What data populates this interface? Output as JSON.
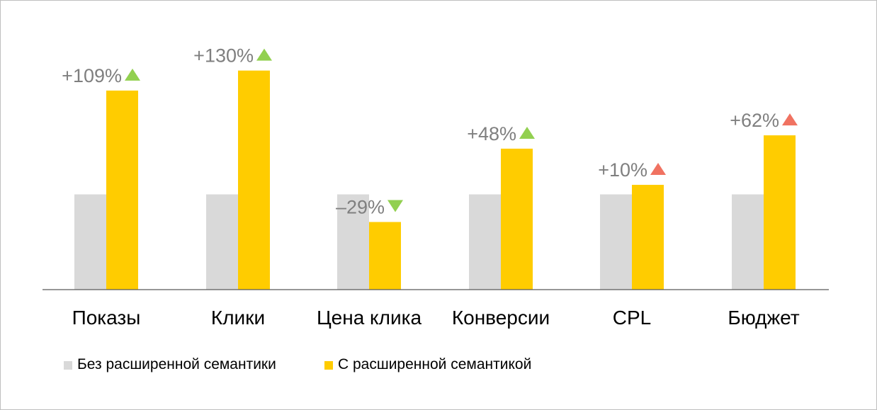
{
  "chart_data": {
    "type": "bar",
    "categories": [
      "Показы",
      "Клики",
      "Цена клика",
      "Конверсии",
      "CPL",
      "Бюджет"
    ],
    "series": [
      {
        "name": "Без расширенной семантики",
        "values": [
          100,
          100,
          100,
          100,
          100,
          100
        ],
        "color": "#d9d9d9"
      },
      {
        "name": "С расширенной семантикой",
        "values": [
          209,
          230,
          71,
          148,
          110,
          162
        ],
        "color": "#ffcc00"
      }
    ],
    "change_labels": [
      "+109%",
      "+130%",
      "–29%",
      "+48%",
      "+10%",
      "+62%"
    ],
    "change_markers": [
      {
        "icon": "triangle-up-icon",
        "color": "#92d050"
      },
      {
        "icon": "triangle-up-icon",
        "color": "#92d050"
      },
      {
        "icon": "triangle-down-icon",
        "color": "#92d050"
      },
      {
        "icon": "triangle-up-icon",
        "color": "#92d050"
      },
      {
        "icon": "triangle-up-icon",
        "color": "#f07261"
      },
      {
        "icon": "triangle-up-icon",
        "color": "#f07261"
      }
    ],
    "ylim": [
      0,
      240
    ],
    "grid": false,
    "legend": "bottom-left",
    "title": "",
    "xlabel": "",
    "ylabel": ""
  }
}
